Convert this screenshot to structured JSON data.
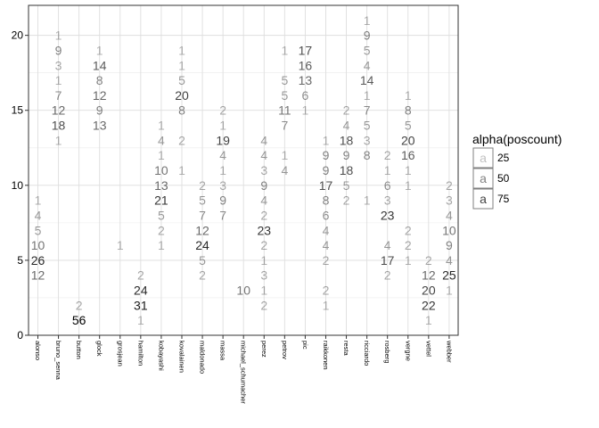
{
  "chart_data": {
    "type": "scatter",
    "title": "",
    "xlabel": "",
    "ylabel": "",
    "ylim": [
      0,
      22
    ],
    "yticks": [
      0,
      5,
      10,
      15,
      20
    ],
    "grid": true,
    "categories": [
      "alonso",
      "bruno_senna",
      "button",
      "glock",
      "grosjean",
      "hamilton",
      "kobayashi",
      "kovalainen",
      "maldonado",
      "massa",
      "michael_schumacher",
      "perez",
      "petrov",
      "pic",
      "raikkonen",
      "resta",
      "ricciardo",
      "rosberg",
      "vergne",
      "vettel",
      "webber"
    ],
    "legend": {
      "title": "alpha(poscount)",
      "position": "right",
      "keys": [
        {
          "glyph": "a",
          "label": "25",
          "alpha": 0.25
        },
        {
          "glyph": "a",
          "label": "50",
          "alpha": 0.5
        },
        {
          "glyph": "a",
          "label": "75",
          "alpha": 0.75
        }
      ]
    },
    "points": [
      {
        "x": "alonso",
        "y": 9,
        "label": "1",
        "alpha": 0.3
      },
      {
        "x": "alonso",
        "y": 8,
        "label": "4",
        "alpha": 0.4
      },
      {
        "x": "alonso",
        "y": 7,
        "label": "5",
        "alpha": 0.4
      },
      {
        "x": "alonso",
        "y": 6,
        "label": "10",
        "alpha": 0.55
      },
      {
        "x": "alonso",
        "y": 5,
        "label": "26",
        "alpha": 0.85
      },
      {
        "x": "alonso",
        "y": 4,
        "label": "12",
        "alpha": 0.6
      },
      {
        "x": "bruno_senna",
        "y": 20,
        "label": "1",
        "alpha": 0.3
      },
      {
        "x": "bruno_senna",
        "y": 19,
        "label": "9",
        "alpha": 0.5
      },
      {
        "x": "bruno_senna",
        "y": 18,
        "label": "3",
        "alpha": 0.35
      },
      {
        "x": "bruno_senna",
        "y": 17,
        "label": "1",
        "alpha": 0.3
      },
      {
        "x": "bruno_senna",
        "y": 16,
        "label": "7",
        "alpha": 0.45
      },
      {
        "x": "bruno_senna",
        "y": 15,
        "label": "12",
        "alpha": 0.6
      },
      {
        "x": "bruno_senna",
        "y": 14,
        "label": "18",
        "alpha": 0.7
      },
      {
        "x": "bruno_senna",
        "y": 13,
        "label": "1",
        "alpha": 0.3
      },
      {
        "x": "button",
        "y": 2,
        "label": "2",
        "alpha": 0.35
      },
      {
        "x": "button",
        "y": 1,
        "label": "56",
        "alpha": 1.0
      },
      {
        "x": "glock",
        "y": 19,
        "label": "1",
        "alpha": 0.3
      },
      {
        "x": "glock",
        "y": 18,
        "label": "14",
        "alpha": 0.65
      },
      {
        "x": "glock",
        "y": 17,
        "label": "8",
        "alpha": 0.5
      },
      {
        "x": "glock",
        "y": 16,
        "label": "12",
        "alpha": 0.6
      },
      {
        "x": "glock",
        "y": 15,
        "label": "9",
        "alpha": 0.5
      },
      {
        "x": "glock",
        "y": 14,
        "label": "13",
        "alpha": 0.6
      },
      {
        "x": "grosjean",
        "y": 6,
        "label": "1",
        "alpha": 0.3
      },
      {
        "x": "hamilton",
        "y": 4,
        "label": "2",
        "alpha": 0.35
      },
      {
        "x": "hamilton",
        "y": 3,
        "label": "24",
        "alpha": 0.85
      },
      {
        "x": "hamilton",
        "y": 2,
        "label": "31",
        "alpha": 0.9
      },
      {
        "x": "hamilton",
        "y": 1,
        "label": "1",
        "alpha": 0.3
      },
      {
        "x": "kobayashi",
        "y": 14,
        "label": "1",
        "alpha": 0.3
      },
      {
        "x": "kobayashi",
        "y": 13,
        "label": "4",
        "alpha": 0.4
      },
      {
        "x": "kobayashi",
        "y": 12,
        "label": "1",
        "alpha": 0.3
      },
      {
        "x": "kobayashi",
        "y": 11,
        "label": "10",
        "alpha": 0.55
      },
      {
        "x": "kobayashi",
        "y": 10,
        "label": "13",
        "alpha": 0.6
      },
      {
        "x": "kobayashi",
        "y": 9,
        "label": "21",
        "alpha": 0.8
      },
      {
        "x": "kobayashi",
        "y": 8,
        "label": "5",
        "alpha": 0.4
      },
      {
        "x": "kobayashi",
        "y": 7,
        "label": "2",
        "alpha": 0.35
      },
      {
        "x": "kobayashi",
        "y": 6,
        "label": "1",
        "alpha": 0.3
      },
      {
        "x": "kovalainen",
        "y": 19,
        "label": "1",
        "alpha": 0.3
      },
      {
        "x": "kovalainen",
        "y": 18,
        "label": "1",
        "alpha": 0.3
      },
      {
        "x": "kovalainen",
        "y": 17,
        "label": "5",
        "alpha": 0.4
      },
      {
        "x": "kovalainen",
        "y": 16,
        "label": "20",
        "alpha": 0.75
      },
      {
        "x": "kovalainen",
        "y": 15,
        "label": "8",
        "alpha": 0.5
      },
      {
        "x": "kovalainen",
        "y": 13,
        "label": "2",
        "alpha": 0.35
      },
      {
        "x": "kovalainen",
        "y": 11,
        "label": "1",
        "alpha": 0.3
      },
      {
        "x": "maldonado",
        "y": 10,
        "label": "2",
        "alpha": 0.35
      },
      {
        "x": "maldonado",
        "y": 9,
        "label": "5",
        "alpha": 0.4
      },
      {
        "x": "maldonado",
        "y": 8,
        "label": "7",
        "alpha": 0.45
      },
      {
        "x": "maldonado",
        "y": 7,
        "label": "12",
        "alpha": 0.6
      },
      {
        "x": "maldonado",
        "y": 6,
        "label": "24",
        "alpha": 0.85
      },
      {
        "x": "maldonado",
        "y": 5,
        "label": "5",
        "alpha": 0.4
      },
      {
        "x": "maldonado",
        "y": 4,
        "label": "2",
        "alpha": 0.35
      },
      {
        "x": "massa",
        "y": 15,
        "label": "2",
        "alpha": 0.35
      },
      {
        "x": "massa",
        "y": 14,
        "label": "1",
        "alpha": 0.3
      },
      {
        "x": "massa",
        "y": 13,
        "label": "19",
        "alpha": 0.75
      },
      {
        "x": "massa",
        "y": 12,
        "label": "4",
        "alpha": 0.4
      },
      {
        "x": "massa",
        "y": 11,
        "label": "1",
        "alpha": 0.3
      },
      {
        "x": "massa",
        "y": 10,
        "label": "3",
        "alpha": 0.35
      },
      {
        "x": "massa",
        "y": 9,
        "label": "9",
        "alpha": 0.5
      },
      {
        "x": "massa",
        "y": 8,
        "label": "7",
        "alpha": 0.45
      },
      {
        "x": "michael_schumacher",
        "y": 3,
        "label": "10",
        "alpha": 0.55
      },
      {
        "x": "perez",
        "y": 13,
        "label": "4",
        "alpha": 0.4
      },
      {
        "x": "perez",
        "y": 12,
        "label": "4",
        "alpha": 0.4
      },
      {
        "x": "perez",
        "y": 11,
        "label": "3",
        "alpha": 0.35
      },
      {
        "x": "perez",
        "y": 10,
        "label": "9",
        "alpha": 0.5
      },
      {
        "x": "perez",
        "y": 9,
        "label": "4",
        "alpha": 0.4
      },
      {
        "x": "perez",
        "y": 8,
        "label": "2",
        "alpha": 0.35
      },
      {
        "x": "perez",
        "y": 7,
        "label": "23",
        "alpha": 0.8
      },
      {
        "x": "perez",
        "y": 6,
        "label": "2",
        "alpha": 0.35
      },
      {
        "x": "perez",
        "y": 5,
        "label": "1",
        "alpha": 0.3
      },
      {
        "x": "perez",
        "y": 4,
        "label": "3",
        "alpha": 0.35
      },
      {
        "x": "perez",
        "y": 3,
        "label": "1",
        "alpha": 0.3
      },
      {
        "x": "perez",
        "y": 2,
        "label": "2",
        "alpha": 0.35
      },
      {
        "x": "petrov",
        "y": 19,
        "label": "1",
        "alpha": 0.3
      },
      {
        "x": "petrov",
        "y": 17,
        "label": "5",
        "alpha": 0.4
      },
      {
        "x": "petrov",
        "y": 16,
        "label": "5",
        "alpha": 0.4
      },
      {
        "x": "petrov",
        "y": 15,
        "label": "11",
        "alpha": 0.55
      },
      {
        "x": "petrov",
        "y": 14,
        "label": "7",
        "alpha": 0.45
      },
      {
        "x": "petrov",
        "y": 12,
        "label": "1",
        "alpha": 0.3
      },
      {
        "x": "petrov",
        "y": 11,
        "label": "4",
        "alpha": 0.4
      },
      {
        "x": "pic",
        "y": 19,
        "label": "17",
        "alpha": 0.7
      },
      {
        "x": "pic",
        "y": 18,
        "label": "16",
        "alpha": 0.65
      },
      {
        "x": "pic",
        "y": 17,
        "label": "13",
        "alpha": 0.6
      },
      {
        "x": "pic",
        "y": 16,
        "label": "6",
        "alpha": 0.45
      },
      {
        "x": "pic",
        "y": 15,
        "label": "1",
        "alpha": 0.3
      },
      {
        "x": "raikkonen",
        "y": 13,
        "label": "1",
        "alpha": 0.3
      },
      {
        "x": "raikkonen",
        "y": 12,
        "label": "9",
        "alpha": 0.5
      },
      {
        "x": "raikkonen",
        "y": 11,
        "label": "9",
        "alpha": 0.5
      },
      {
        "x": "raikkonen",
        "y": 10,
        "label": "17",
        "alpha": 0.7
      },
      {
        "x": "raikkonen",
        "y": 9,
        "label": "8",
        "alpha": 0.5
      },
      {
        "x": "raikkonen",
        "y": 8,
        "label": "6",
        "alpha": 0.45
      },
      {
        "x": "raikkonen",
        "y": 7,
        "label": "4",
        "alpha": 0.4
      },
      {
        "x": "raikkonen",
        "y": 6,
        "label": "4",
        "alpha": 0.4
      },
      {
        "x": "raikkonen",
        "y": 5,
        "label": "2",
        "alpha": 0.35
      },
      {
        "x": "raikkonen",
        "y": 3,
        "label": "2",
        "alpha": 0.35
      },
      {
        "x": "raikkonen",
        "y": 2,
        "label": "1",
        "alpha": 0.3
      },
      {
        "x": "resta",
        "y": 15,
        "label": "2",
        "alpha": 0.35
      },
      {
        "x": "resta",
        "y": 14,
        "label": "4",
        "alpha": 0.4
      },
      {
        "x": "resta",
        "y": 13,
        "label": "18",
        "alpha": 0.7
      },
      {
        "x": "resta",
        "y": 12,
        "label": "9",
        "alpha": 0.5
      },
      {
        "x": "resta",
        "y": 11,
        "label": "18",
        "alpha": 0.7
      },
      {
        "x": "resta",
        "y": 10,
        "label": "5",
        "alpha": 0.4
      },
      {
        "x": "resta",
        "y": 9,
        "label": "2",
        "alpha": 0.35
      },
      {
        "x": "ricciardo",
        "y": 21,
        "label": "1",
        "alpha": 0.3
      },
      {
        "x": "ricciardo",
        "y": 20,
        "label": "9",
        "alpha": 0.5
      },
      {
        "x": "ricciardo",
        "y": 19,
        "label": "5",
        "alpha": 0.4
      },
      {
        "x": "ricciardo",
        "y": 18,
        "label": "4",
        "alpha": 0.4
      },
      {
        "x": "ricciardo",
        "y": 17,
        "label": "14",
        "alpha": 0.65
      },
      {
        "x": "ricciardo",
        "y": 16,
        "label": "1",
        "alpha": 0.3
      },
      {
        "x": "ricciardo",
        "y": 15,
        "label": "7",
        "alpha": 0.45
      },
      {
        "x": "ricciardo",
        "y": 14,
        "label": "5",
        "alpha": 0.4
      },
      {
        "x": "ricciardo",
        "y": 13,
        "label": "3",
        "alpha": 0.35
      },
      {
        "x": "ricciardo",
        "y": 12,
        "label": "8",
        "alpha": 0.5
      },
      {
        "x": "ricciardo",
        "y": 9,
        "label": "1",
        "alpha": 0.3
      },
      {
        "x": "rosberg",
        "y": 12,
        "label": "2",
        "alpha": 0.35
      },
      {
        "x": "rosberg",
        "y": 11,
        "label": "1",
        "alpha": 0.3
      },
      {
        "x": "rosberg",
        "y": 10,
        "label": "6",
        "alpha": 0.45
      },
      {
        "x": "rosberg",
        "y": 9,
        "label": "3",
        "alpha": 0.35
      },
      {
        "x": "rosberg",
        "y": 8,
        "label": "23",
        "alpha": 0.8
      },
      {
        "x": "rosberg",
        "y": 6,
        "label": "4",
        "alpha": 0.4
      },
      {
        "x": "rosberg",
        "y": 5,
        "label": "17",
        "alpha": 0.7
      },
      {
        "x": "rosberg",
        "y": 4,
        "label": "2",
        "alpha": 0.35
      },
      {
        "x": "vergne",
        "y": 16,
        "label": "1",
        "alpha": 0.3
      },
      {
        "x": "vergne",
        "y": 15,
        "label": "8",
        "alpha": 0.5
      },
      {
        "x": "vergne",
        "y": 14,
        "label": "5",
        "alpha": 0.4
      },
      {
        "x": "vergne",
        "y": 13,
        "label": "20",
        "alpha": 0.75
      },
      {
        "x": "vergne",
        "y": 12,
        "label": "16",
        "alpha": 0.65
      },
      {
        "x": "vergne",
        "y": 11,
        "label": "1",
        "alpha": 0.3
      },
      {
        "x": "vergne",
        "y": 10,
        "label": "1",
        "alpha": 0.3
      },
      {
        "x": "vergne",
        "y": 7,
        "label": "2",
        "alpha": 0.35
      },
      {
        "x": "vergne",
        "y": 6,
        "label": "2",
        "alpha": 0.35
      },
      {
        "x": "vergne",
        "y": 5,
        "label": "1",
        "alpha": 0.3
      },
      {
        "x": "vettel",
        "y": 5,
        "label": "2",
        "alpha": 0.35
      },
      {
        "x": "vettel",
        "y": 4,
        "label": "12",
        "alpha": 0.6
      },
      {
        "x": "vettel",
        "y": 3,
        "label": "20",
        "alpha": 0.75
      },
      {
        "x": "vettel",
        "y": 2,
        "label": "22",
        "alpha": 0.8
      },
      {
        "x": "vettel",
        "y": 1,
        "label": "1",
        "alpha": 0.3
      },
      {
        "x": "webber",
        "y": 10,
        "label": "2",
        "alpha": 0.35
      },
      {
        "x": "webber",
        "y": 9,
        "label": "3",
        "alpha": 0.35
      },
      {
        "x": "webber",
        "y": 8,
        "label": "4",
        "alpha": 0.4
      },
      {
        "x": "webber",
        "y": 7,
        "label": "10",
        "alpha": 0.55
      },
      {
        "x": "webber",
        "y": 6,
        "label": "9",
        "alpha": 0.5
      },
      {
        "x": "webber",
        "y": 5,
        "label": "4",
        "alpha": 0.4
      },
      {
        "x": "webber",
        "y": 4,
        "label": "25",
        "alpha": 0.85
      },
      {
        "x": "webber",
        "y": 3,
        "label": "1",
        "alpha": 0.3
      }
    ]
  }
}
